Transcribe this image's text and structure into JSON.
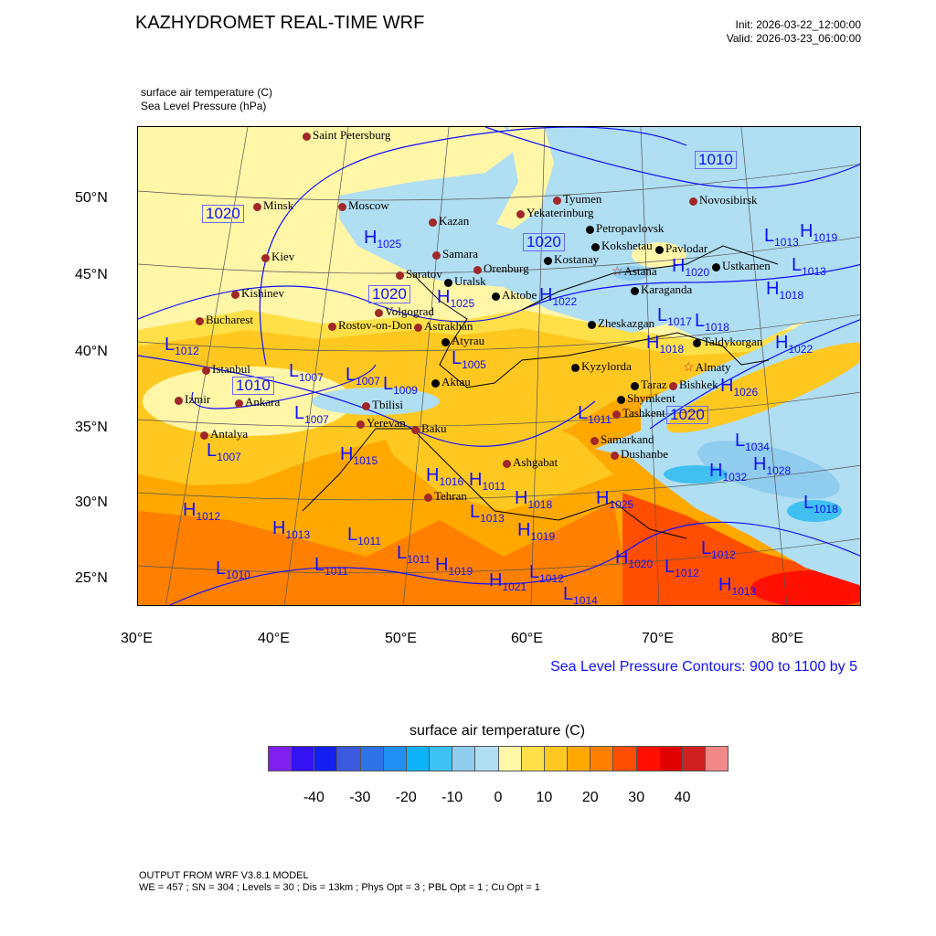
{
  "header": {
    "title": "KAZHYDROMET REAL-TIME WRF",
    "init": "Init: 2026-03-22_12:00:00",
    "valid": "Valid: 2026-03-23_06:00:00",
    "field1": "surface air temperature   (C)",
    "field2": "Sea Level Pressure   (hPa)"
  },
  "axes": {
    "lat_labels": [
      "50°N",
      "45°N",
      "40°N",
      "35°N",
      "30°N",
      "25°N"
    ],
    "lon_labels": [
      "30°E",
      "40°E",
      "50°E",
      "60°E",
      "70°E",
      "80°E"
    ]
  },
  "cities": [
    {
      "name": "Saint Petersburg",
      "marker": "red"
    },
    {
      "name": "Minsk",
      "marker": "red"
    },
    {
      "name": "Moscow",
      "marker": "red"
    },
    {
      "name": "Kazan",
      "marker": "red"
    },
    {
      "name": "Kiev",
      "marker": "red"
    },
    {
      "name": "Samara",
      "marker": "red"
    },
    {
      "name": "Saratov",
      "marker": "red"
    },
    {
      "name": "Uralsk",
      "marker": "black"
    },
    {
      "name": "Orenburg",
      "marker": "red"
    },
    {
      "name": "Kishinev",
      "marker": "red"
    },
    {
      "name": "Bucharest",
      "marker": "red"
    },
    {
      "name": "Volgograd",
      "marker": "red"
    },
    {
      "name": "Rostov-on-Don",
      "marker": "red"
    },
    {
      "name": "Astrakhan",
      "marker": "red"
    },
    {
      "name": "Atyrau",
      "marker": "black"
    },
    {
      "name": "Aktobe",
      "marker": "black"
    },
    {
      "name": "Tyumen",
      "marker": "red"
    },
    {
      "name": "Yekaterinburg",
      "marker": "red"
    },
    {
      "name": "Novosibirsk",
      "marker": "red"
    },
    {
      "name": "Petropavlovsk",
      "marker": "black"
    },
    {
      "name": "Kokshetau",
      "marker": "black"
    },
    {
      "name": "Pavlodar",
      "marker": "black"
    },
    {
      "name": "Kostanay",
      "marker": "black"
    },
    {
      "name": "Astana",
      "marker": "star"
    },
    {
      "name": "Karaganda",
      "marker": "black"
    },
    {
      "name": "Ustkamen",
      "marker": "black"
    },
    {
      "name": "Zheskazgan",
      "marker": "black"
    },
    {
      "name": "Taldykorgan",
      "marker": "black"
    },
    {
      "name": "Aktau",
      "marker": "black"
    },
    {
      "name": "Kyzylorda",
      "marker": "black"
    },
    {
      "name": "Almaty",
      "marker": "star"
    },
    {
      "name": "Taraz",
      "marker": "black"
    },
    {
      "name": "Bishkek",
      "marker": "red"
    },
    {
      "name": "Shymkent",
      "marker": "black"
    },
    {
      "name": "Tashkent",
      "marker": "red"
    },
    {
      "name": "Samarkand",
      "marker": "red"
    },
    {
      "name": "Dushanbe",
      "marker": "red"
    },
    {
      "name": "Istanbul",
      "marker": "red"
    },
    {
      "name": "Izmir",
      "marker": "red"
    },
    {
      "name": "Ankara",
      "marker": "red"
    },
    {
      "name": "Antalya",
      "marker": "red"
    },
    {
      "name": "Tbilisi",
      "marker": "red"
    },
    {
      "name": "Yerevan",
      "marker": "red"
    },
    {
      "name": "Baku",
      "marker": "red"
    },
    {
      "name": "Ashgabat",
      "marker": "red"
    },
    {
      "name": "Tehran",
      "marker": "red"
    }
  ],
  "pressure_centers": [
    {
      "t": "H",
      "v": "1025"
    },
    {
      "t": "H",
      "v": "1025"
    },
    {
      "t": "L",
      "v": "1012"
    },
    {
      "t": "L",
      "v": "1005"
    },
    {
      "t": "L",
      "v": "1007"
    },
    {
      "t": "L",
      "v": "1007"
    },
    {
      "t": "L",
      "v": "1009"
    },
    {
      "t": "L",
      "v": "1007"
    },
    {
      "t": "L",
      "v": "1007"
    },
    {
      "t": "H",
      "v": "1015"
    },
    {
      "t": "H",
      "v": "1012"
    },
    {
      "t": "H",
      "v": "1013"
    },
    {
      "t": "L",
      "v": "1011"
    },
    {
      "t": "L",
      "v": "1011"
    },
    {
      "t": "L",
      "v": "1011"
    },
    {
      "t": "L",
      "v": "1010"
    },
    {
      "t": "H",
      "v": "1019"
    },
    {
      "t": "H",
      "v": "1016"
    },
    {
      "t": "H",
      "v": "1011"
    },
    {
      "t": "L",
      "v": "1013"
    },
    {
      "t": "H",
      "v": "1018"
    },
    {
      "t": "H",
      "v": "1019"
    },
    {
      "t": "H",
      "v": "1025"
    },
    {
      "t": "H",
      "v": "1020"
    },
    {
      "t": "L",
      "v": "1012"
    },
    {
      "t": "L",
      "v": "1012"
    },
    {
      "t": "H",
      "v": "1013"
    },
    {
      "t": "L",
      "v": "1014"
    },
    {
      "t": "H",
      "v": "1022"
    },
    {
      "t": "L",
      "v": "1017"
    },
    {
      "t": "H",
      "v": "1020"
    },
    {
      "t": "L",
      "v": "1013"
    },
    {
      "t": "H",
      "v": "1019"
    },
    {
      "t": "L",
      "v": "1013"
    },
    {
      "t": "H",
      "v": "1018"
    },
    {
      "t": "H",
      "v": "1018"
    },
    {
      "t": "L",
      "v": "1018"
    },
    {
      "t": "H",
      "v": "1022"
    },
    {
      "t": "H",
      "v": "1026"
    },
    {
      "t": "L",
      "v": "1034"
    },
    {
      "t": "H",
      "v": "1028"
    },
    {
      "t": "H",
      "v": "1032"
    },
    {
      "t": "L",
      "v": "1018"
    },
    {
      "t": "L",
      "v": "1011"
    },
    {
      "t": "H",
      "v": "1021"
    },
    {
      "t": "L",
      "v": "1012"
    }
  ],
  "contour_labels": [
    "1020",
    "1010",
    "1020",
    "1020",
    "1010",
    "1020"
  ],
  "slp_note": "Sea Level Pressure Contours: 900 to 1100 by 5",
  "colorbar": {
    "title": "surface air temperature  (C)",
    "colors": [
      "#8020f0",
      "#3412f2",
      "#1420f2",
      "#3c5ae0",
      "#3072e8",
      "#2090f2",
      "#0cb2fa",
      "#3cc2f4",
      "#90ccee",
      "#b0def2",
      "#fff6a8",
      "#ffe048",
      "#ffc820",
      "#ffa800",
      "#ff8000",
      "#ff4e00",
      "#ff1000",
      "#e00000",
      "#d02020",
      "#f08888"
    ],
    "labels": [
      "-40",
      "-30",
      "-20",
      "-10",
      "0",
      "10",
      "20",
      "30",
      "40"
    ]
  },
  "footer": {
    "line1": "OUTPUT FROM WRF V3.8.1 MODEL",
    "line2": "WE = 457 ; SN = 304 ; Levels = 30 ; Dis = 13km ; Phys Opt = 3 ; PBL Opt = 1 ; Cu Opt = 1"
  }
}
